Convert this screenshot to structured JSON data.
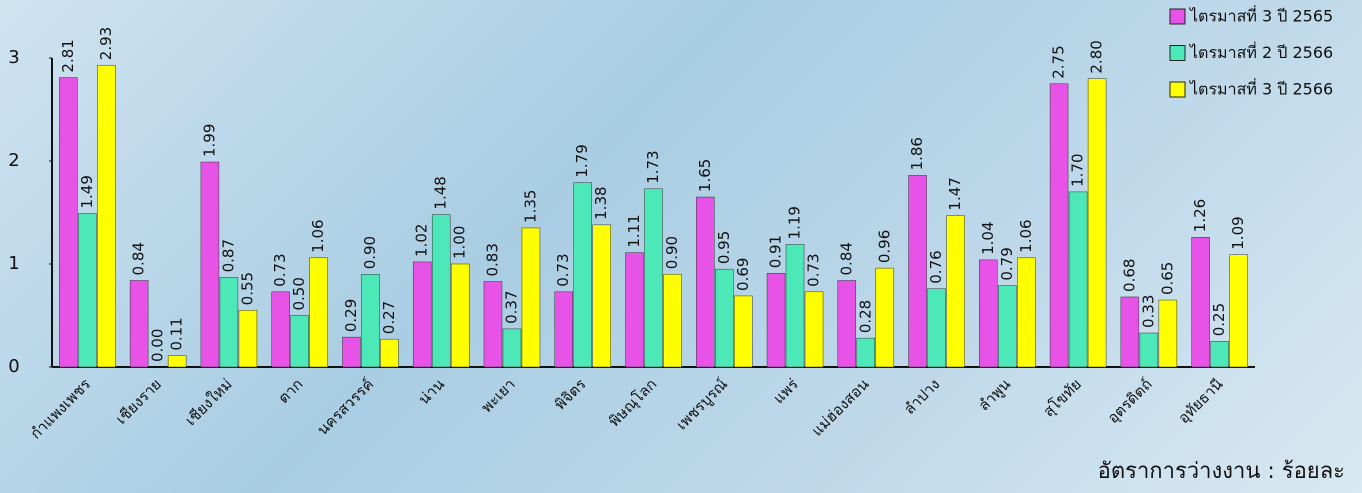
{
  "chart_data": {
    "type": "bar",
    "subtitle": "อัตราการว่างงาน : ร้อยละ",
    "categories": [
      "กำแพงเพชร",
      "เชียงราย",
      "เชียงใหม่",
      "ตาก",
      "นครสวรรค์",
      "น่าน",
      "พะเยา",
      "พิจิตร",
      "พิษณุโลก",
      "เพชรบูรณ์",
      "แพร่",
      "แม่ฮ่องสอน",
      "ลำปาง",
      "ลำพูน",
      "สุโขทัย",
      "อุตรดิตถ์",
      "อุทัยธานี"
    ],
    "series": [
      {
        "name": "ไตรมาสที่ 3 ปี 2565",
        "color": "#e653e6",
        "values": [
          2.81,
          0.84,
          1.99,
          0.73,
          0.29,
          1.02,
          0.83,
          0.73,
          1.11,
          1.65,
          0.91,
          0.84,
          1.86,
          1.04,
          2.75,
          0.68,
          1.26
        ],
        "value_labels": [
          "2.81",
          "0.84",
          "1.99",
          "0.73",
          "0.29",
          "1.02",
          "0.83",
          "0.73",
          "1.11",
          "1.65",
          "0.91",
          "0.84",
          "1.86",
          "1.04",
          "2.75",
          "0.68",
          "1.26"
        ]
      },
      {
        "name": "ไตรมาสที่ 2 ปี 2566",
        "color": "#4de8b8",
        "values": [
          1.49,
          0.0,
          0.87,
          0.5,
          0.9,
          1.48,
          0.37,
          1.79,
          1.73,
          0.95,
          1.19,
          0.28,
          0.76,
          0.79,
          1.7,
          0.33,
          0.25
        ],
        "value_labels": [
          "1.49",
          "0.00",
          "0.87",
          "0.50",
          "0.90",
          "1.48",
          "0.37",
          "1.79",
          "1.73",
          "0.95",
          "1.19",
          "0.28",
          "0.76",
          "0.79",
          "1.70",
          "0.33",
          "0.25"
        ]
      },
      {
        "name": "ไตรมาสที่ 3 ปี 2566",
        "color": "#ffff00",
        "values": [
          2.93,
          0.11,
          0.55,
          1.06,
          0.27,
          1.0,
          1.35,
          1.38,
          0.9,
          0.69,
          0.73,
          0.96,
          1.47,
          1.06,
          2.8,
          0.65,
          1.09
        ],
        "value_labels": [
          "2.93",
          "0.11",
          "0.55",
          "1.06",
          "0.27",
          "1.00",
          "1.35",
          "1.38",
          "0.90",
          "0.69",
          "0.73",
          "0.96",
          "1.47",
          "1.06",
          "2.80",
          "0.65",
          "1.09"
        ]
      }
    ],
    "ylim": [
      0,
      3
    ],
    "yticks": [
      0,
      1,
      2,
      3
    ],
    "legend": "top-right"
  }
}
